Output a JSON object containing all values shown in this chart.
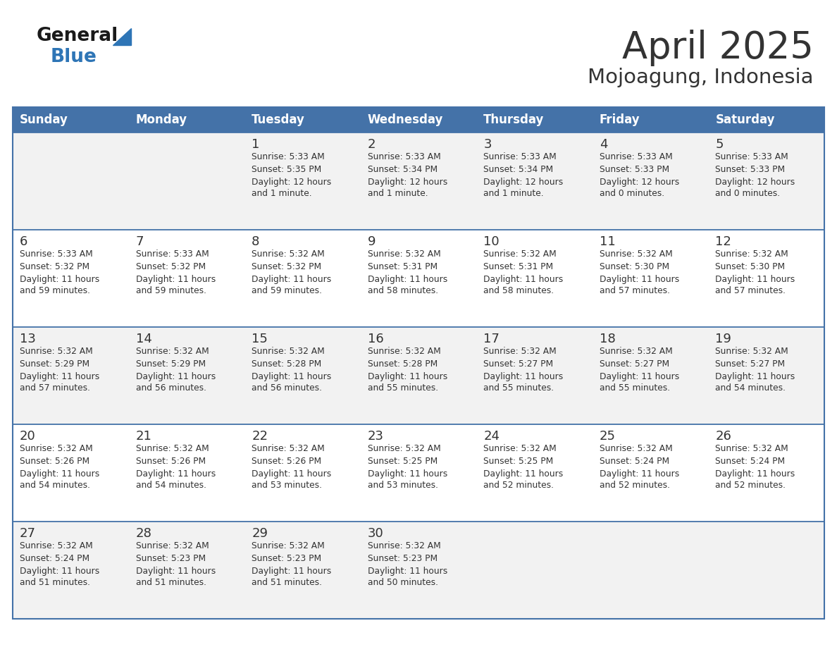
{
  "title": "April 2025",
  "subtitle": "Mojoagung, Indonesia",
  "days_of_week": [
    "Sunday",
    "Monday",
    "Tuesday",
    "Wednesday",
    "Thursday",
    "Friday",
    "Saturday"
  ],
  "header_bg": "#4472A8",
  "header_text": "#FFFFFF",
  "cell_bg_light": "#F2F2F2",
  "cell_bg_white": "#FFFFFF",
  "border_color": "#4472A8",
  "text_color": "#333333",
  "logo_general_color": "#1a1a1a",
  "logo_blue_color": "#2E75B6",
  "calendar_data": [
    [
      {
        "day": "",
        "sunrise": "",
        "sunset": "",
        "daylight": ""
      },
      {
        "day": "",
        "sunrise": "",
        "sunset": "",
        "daylight": ""
      },
      {
        "day": "1",
        "sunrise": "Sunrise: 5:33 AM",
        "sunset": "Sunset: 5:35 PM",
        "daylight": "Daylight: 12 hours and 1 minute."
      },
      {
        "day": "2",
        "sunrise": "Sunrise: 5:33 AM",
        "sunset": "Sunset: 5:34 PM",
        "daylight": "Daylight: 12 hours and 1 minute."
      },
      {
        "day": "3",
        "sunrise": "Sunrise: 5:33 AM",
        "sunset": "Sunset: 5:34 PM",
        "daylight": "Daylight: 12 hours and 1 minute."
      },
      {
        "day": "4",
        "sunrise": "Sunrise: 5:33 AM",
        "sunset": "Sunset: 5:33 PM",
        "daylight": "Daylight: 12 hours and 0 minutes."
      },
      {
        "day": "5",
        "sunrise": "Sunrise: 5:33 AM",
        "sunset": "Sunset: 5:33 PM",
        "daylight": "Daylight: 12 hours and 0 minutes."
      }
    ],
    [
      {
        "day": "6",
        "sunrise": "Sunrise: 5:33 AM",
        "sunset": "Sunset: 5:32 PM",
        "daylight": "Daylight: 11 hours and 59 minutes."
      },
      {
        "day": "7",
        "sunrise": "Sunrise: 5:33 AM",
        "sunset": "Sunset: 5:32 PM",
        "daylight": "Daylight: 11 hours and 59 minutes."
      },
      {
        "day": "8",
        "sunrise": "Sunrise: 5:32 AM",
        "sunset": "Sunset: 5:32 PM",
        "daylight": "Daylight: 11 hours and 59 minutes."
      },
      {
        "day": "9",
        "sunrise": "Sunrise: 5:32 AM",
        "sunset": "Sunset: 5:31 PM",
        "daylight": "Daylight: 11 hours and 58 minutes."
      },
      {
        "day": "10",
        "sunrise": "Sunrise: 5:32 AM",
        "sunset": "Sunset: 5:31 PM",
        "daylight": "Daylight: 11 hours and 58 minutes."
      },
      {
        "day": "11",
        "sunrise": "Sunrise: 5:32 AM",
        "sunset": "Sunset: 5:30 PM",
        "daylight": "Daylight: 11 hours and 57 minutes."
      },
      {
        "day": "12",
        "sunrise": "Sunrise: 5:32 AM",
        "sunset": "Sunset: 5:30 PM",
        "daylight": "Daylight: 11 hours and 57 minutes."
      }
    ],
    [
      {
        "day": "13",
        "sunrise": "Sunrise: 5:32 AM",
        "sunset": "Sunset: 5:29 PM",
        "daylight": "Daylight: 11 hours and 57 minutes."
      },
      {
        "day": "14",
        "sunrise": "Sunrise: 5:32 AM",
        "sunset": "Sunset: 5:29 PM",
        "daylight": "Daylight: 11 hours and 56 minutes."
      },
      {
        "day": "15",
        "sunrise": "Sunrise: 5:32 AM",
        "sunset": "Sunset: 5:28 PM",
        "daylight": "Daylight: 11 hours and 56 minutes."
      },
      {
        "day": "16",
        "sunrise": "Sunrise: 5:32 AM",
        "sunset": "Sunset: 5:28 PM",
        "daylight": "Daylight: 11 hours and 55 minutes."
      },
      {
        "day": "17",
        "sunrise": "Sunrise: 5:32 AM",
        "sunset": "Sunset: 5:27 PM",
        "daylight": "Daylight: 11 hours and 55 minutes."
      },
      {
        "day": "18",
        "sunrise": "Sunrise: 5:32 AM",
        "sunset": "Sunset: 5:27 PM",
        "daylight": "Daylight: 11 hours and 55 minutes."
      },
      {
        "day": "19",
        "sunrise": "Sunrise: 5:32 AM",
        "sunset": "Sunset: 5:27 PM",
        "daylight": "Daylight: 11 hours and 54 minutes."
      }
    ],
    [
      {
        "day": "20",
        "sunrise": "Sunrise: 5:32 AM",
        "sunset": "Sunset: 5:26 PM",
        "daylight": "Daylight: 11 hours and 54 minutes."
      },
      {
        "day": "21",
        "sunrise": "Sunrise: 5:32 AM",
        "sunset": "Sunset: 5:26 PM",
        "daylight": "Daylight: 11 hours and 54 minutes."
      },
      {
        "day": "22",
        "sunrise": "Sunrise: 5:32 AM",
        "sunset": "Sunset: 5:26 PM",
        "daylight": "Daylight: 11 hours and 53 minutes."
      },
      {
        "day": "23",
        "sunrise": "Sunrise: 5:32 AM",
        "sunset": "Sunset: 5:25 PM",
        "daylight": "Daylight: 11 hours and 53 minutes."
      },
      {
        "day": "24",
        "sunrise": "Sunrise: 5:32 AM",
        "sunset": "Sunset: 5:25 PM",
        "daylight": "Daylight: 11 hours and 52 minutes."
      },
      {
        "day": "25",
        "sunrise": "Sunrise: 5:32 AM",
        "sunset": "Sunset: 5:24 PM",
        "daylight": "Daylight: 11 hours and 52 minutes."
      },
      {
        "day": "26",
        "sunrise": "Sunrise: 5:32 AM",
        "sunset": "Sunset: 5:24 PM",
        "daylight": "Daylight: 11 hours and 52 minutes."
      }
    ],
    [
      {
        "day": "27",
        "sunrise": "Sunrise: 5:32 AM",
        "sunset": "Sunset: 5:24 PM",
        "daylight": "Daylight: 11 hours and 51 minutes."
      },
      {
        "day": "28",
        "sunrise": "Sunrise: 5:32 AM",
        "sunset": "Sunset: 5:23 PM",
        "daylight": "Daylight: 11 hours and 51 minutes."
      },
      {
        "day": "29",
        "sunrise": "Sunrise: 5:32 AM",
        "sunset": "Sunset: 5:23 PM",
        "daylight": "Daylight: 11 hours and 51 minutes."
      },
      {
        "day": "30",
        "sunrise": "Sunrise: 5:32 AM",
        "sunset": "Sunset: 5:23 PM",
        "daylight": "Daylight: 11 hours and 50 minutes."
      },
      {
        "day": "",
        "sunrise": "",
        "sunset": "",
        "daylight": ""
      },
      {
        "day": "",
        "sunrise": "",
        "sunset": "",
        "daylight": ""
      },
      {
        "day": "",
        "sunrise": "",
        "sunset": "",
        "daylight": ""
      }
    ]
  ]
}
